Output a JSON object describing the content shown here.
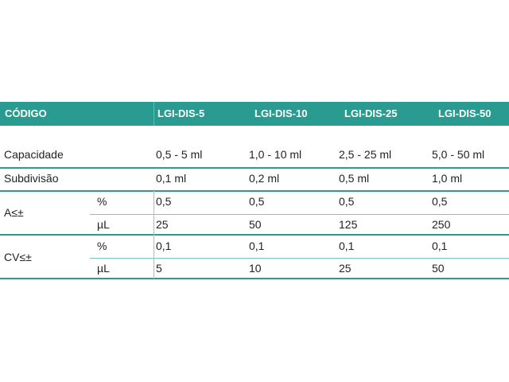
{
  "table": {
    "header": {
      "code": "CÓDIGO",
      "models": [
        "LGI-DIS-5",
        "LGI-DIS-10",
        "LGI-DIS-25",
        "LGI-DIS-50"
      ]
    },
    "capacity": {
      "label": "Capacidade",
      "values": [
        "0,5 - 5 ml",
        "1,0 - 10 ml",
        "2,5 - 25 ml",
        "5,0 - 50 ml"
      ]
    },
    "subdivision": {
      "label": "Subdivisão",
      "values": [
        "0,1 ml",
        "0,2 ml",
        "0,5 ml",
        "1,0 ml"
      ]
    },
    "accuracy": {
      "label": "A≤±",
      "percent_unit": "%",
      "percent_values": [
        "0,5",
        "0,5",
        "0,5",
        "0,5"
      ],
      "ul_unit": "µL",
      "ul_values": [
        "25",
        "50",
        "125",
        "250"
      ]
    },
    "cv": {
      "label": "CV≤±",
      "percent_unit": "%",
      "percent_values": [
        "0,1",
        "0,1",
        "0,1",
        "0,1"
      ],
      "ul_unit": "µL",
      "ul_values": [
        "5",
        "10",
        "25",
        "50"
      ]
    }
  },
  "colors": {
    "accent": "#2a9b90",
    "header_text": "#ffffff",
    "line": "#7cc7bf"
  }
}
